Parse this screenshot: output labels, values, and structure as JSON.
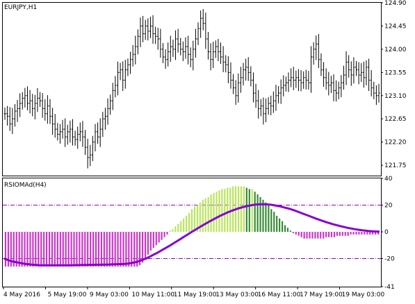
{
  "main": {
    "symbol_label": "EURJPY,H1",
    "price_axis_labels": [
      "124.90",
      "124.45",
      "124.00",
      "123.55",
      "123.10",
      "122.65",
      "122.20",
      "121.75"
    ],
    "price_range": [
      121.55,
      124.9
    ]
  },
  "indicator": {
    "name_label": "RSIOMAd(H4)",
    "axis_labels": [
      "40",
      "20",
      "0",
      "-20",
      "-41"
    ],
    "range": [
      -41,
      40
    ],
    "levels": [
      20,
      -20
    ]
  },
  "time_axis_labels": [
    "4 May 2016",
    "5 May 19:00",
    "9 May 03:00",
    "10 May 11:00",
    "11 May 19:00",
    "13 May 03:00",
    "16 May 11:00",
    "17 May 19:00",
    "19 May 03:00"
  ],
  "colors": {
    "background": "#ffffff",
    "grid_border": "#000000",
    "bars": "#000000",
    "histogram_negative": "#cc33cc",
    "histogram_positive_light": "#b8e65a",
    "histogram_positive_dark": "#338833",
    "signal_line": "#8800cc",
    "level_line": "#8800cc"
  },
  "chart_data": [
    {
      "type": "candlestick",
      "title": "EURJPY,H1",
      "ylim": [
        121.55,
        124.9
      ],
      "grid": false,
      "series": [
        {
          "values": [
            122.75,
            122.7,
            122.55,
            122.65,
            122.8,
            122.85,
            122.95,
            123.05,
            123.1,
            122.95,
            123.0,
            122.85,
            122.95,
            123.05,
            123.0,
            122.85,
            122.75,
            122.9,
            122.7,
            122.55,
            122.45,
            122.35,
            122.4,
            122.45,
            122.3,
            122.4,
            122.45,
            122.3,
            122.25,
            122.35,
            122.4,
            122.3,
            122.1,
            121.9,
            121.95,
            122.2,
            122.4,
            122.3,
            122.45,
            122.65,
            122.7,
            122.85,
            123.0,
            123.2,
            123.3,
            123.55,
            123.6,
            123.4,
            123.6,
            123.7,
            123.8,
            123.9,
            124.05,
            124.25,
            124.45,
            124.3,
            124.45,
            124.35,
            124.45,
            124.3,
            124.25,
            124.2,
            124.0,
            123.85,
            123.8,
            123.95,
            124.05,
            124.0,
            124.2,
            124.1,
            124.0,
            123.95,
            124.05,
            123.9,
            123.8,
            124.0,
            124.2,
            124.4,
            124.6,
            124.5,
            124.2,
            123.95,
            123.8,
            123.95,
            124.05,
            123.95,
            123.85,
            123.75,
            123.7,
            123.55,
            123.4,
            123.25,
            123.1,
            123.35,
            123.45,
            123.6,
            123.65,
            123.55,
            123.4,
            123.15,
            123.0,
            122.85,
            122.9,
            122.75,
            122.85,
            122.95,
            122.9,
            123.0,
            123.1,
            123.15,
            123.25,
            123.3,
            123.35,
            123.4,
            123.45,
            123.4,
            123.45,
            123.4,
            123.35,
            123.45,
            123.4,
            123.35,
            123.85,
            124.0,
            124.1,
            123.8,
            123.6,
            123.45,
            123.35,
            123.3,
            123.35,
            123.2,
            123.15,
            123.25,
            123.35,
            123.5,
            123.75,
            123.6,
            123.5,
            123.65,
            123.6,
            123.5,
            123.55,
            123.45,
            123.65,
            123.4,
            123.25,
            123.15,
            123.1,
            123.15
          ]
        }
      ]
    },
    {
      "type": "bar",
      "title": "RSIOMAd(H4)",
      "ylim": [
        -41,
        40
      ],
      "grid": false,
      "series": [
        {
          "name": "histogram",
          "values": [
            -26,
            -26,
            -26,
            -26,
            -26,
            -26,
            -26,
            -26,
            -26,
            -26,
            -26,
            -26,
            -26,
            -26,
            -26,
            -26,
            -26,
            -26,
            -26,
            -26,
            -26,
            -26,
            -26,
            -26,
            -26,
            -26,
            -26,
            -26,
            -26,
            -26,
            -26,
            -26,
            -26,
            -26,
            -26,
            -26,
            -26,
            -26,
            -26,
            -26,
            -26,
            -26,
            -26,
            -26,
            -26,
            -26,
            -26,
            -26,
            -26,
            -25,
            -23,
            -20,
            -17,
            -14,
            -12,
            -10,
            -8,
            -6,
            -4,
            -2,
            1,
            2,
            4,
            6,
            8,
            10,
            12,
            14,
            17,
            19,
            20,
            22,
            24,
            25,
            26,
            28,
            29,
            30,
            31,
            32,
            32,
            33,
            33,
            34,
            34,
            34,
            34,
            34,
            33,
            32,
            32,
            30,
            28,
            26,
            24,
            22,
            20,
            17,
            15,
            12,
            10,
            8,
            5,
            3,
            1,
            -1,
            -2,
            -3,
            -4,
            -5,
            -5,
            -5,
            -5,
            -5,
            -5,
            -5,
            -5,
            -4,
            -4,
            -4,
            -4,
            -3,
            -3,
            -3,
            -3,
            -3,
            -2,
            -2,
            -2,
            -2,
            -2,
            -2,
            -2,
            -2,
            -2,
            -2,
            -2
          ]
        },
        {
          "name": "signal",
          "values": [
            -20,
            -21,
            -22,
            -22.5,
            -23,
            -23.5,
            -24,
            -24.3,
            -24.6,
            -24.8,
            -25,
            -25,
            -25,
            -25,
            -25,
            -25,
            -25,
            -25,
            -25,
            -25,
            -24.9,
            -24.9,
            -24.8,
            -24.8,
            -24.7,
            -24.7,
            -24.6,
            -24.6,
            -24.5,
            -24.5,
            -24.4,
            -24.3,
            -24.2,
            -24.1,
            -24,
            -23.7,
            -23.3,
            -22.8,
            -22,
            -21,
            -20,
            -18.7,
            -17.3,
            -16,
            -14.5,
            -13,
            -11.5,
            -10,
            -8.3,
            -6.7,
            -5,
            -3.3,
            -1.7,
            0,
            1.6,
            3.2,
            4.8,
            6.3,
            7.8,
            9.2,
            10.6,
            12,
            13.2,
            14.4,
            15.5,
            16.5,
            17.4,
            18.2,
            18.9,
            19.5,
            20,
            20.4,
            20.6,
            20.7,
            20.6,
            20.4,
            20,
            19.5,
            19,
            18.3,
            17.6,
            16.9,
            16,
            15,
            14,
            13,
            12,
            11,
            10,
            9,
            8.1,
            7.2,
            6.4,
            5.6,
            4.9,
            4.2,
            3.6,
            3,
            2.5,
            2,
            1.6,
            1.2,
            0.9,
            0.6,
            0.4,
            0.3,
            0.2
          ]
        }
      ]
    }
  ]
}
